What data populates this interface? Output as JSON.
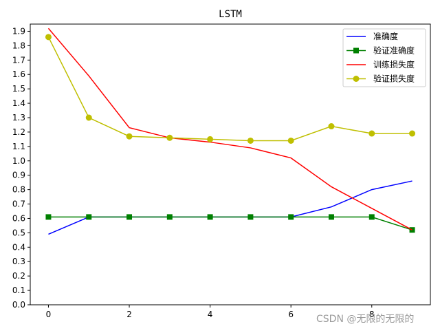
{
  "chart_data": {
    "type": "line",
    "title": "LSTM",
    "xlabel": "",
    "ylabel": "",
    "x": [
      0,
      1,
      2,
      3,
      4,
      5,
      6,
      7,
      8,
      9
    ],
    "xlim": [
      -0.45,
      9.45
    ],
    "ylim": [
      0.0,
      1.95
    ],
    "xticks": [
      0,
      2,
      4,
      6,
      8
    ],
    "yticks": [
      0.0,
      0.1,
      0.2,
      0.3,
      0.4,
      0.5,
      0.6,
      0.7,
      0.8,
      0.9,
      1.0,
      1.1,
      1.2,
      1.3,
      1.4,
      1.5,
      1.6,
      1.7,
      1.8,
      1.9
    ],
    "grid": false,
    "legend_position": "top-right",
    "series": [
      {
        "name": "准确度",
        "color": "#0000ff",
        "marker": "none",
        "values": [
          0.49,
          0.61,
          0.61,
          0.61,
          0.61,
          0.61,
          0.61,
          0.68,
          0.8,
          0.86
        ]
      },
      {
        "name": "验证准确度",
        "color": "#008000",
        "marker": "square",
        "values": [
          0.61,
          0.61,
          0.61,
          0.61,
          0.61,
          0.61,
          0.61,
          0.61,
          0.61,
          0.52
        ]
      },
      {
        "name": "训练损失度",
        "color": "#ff0000",
        "marker": "none",
        "values": [
          1.92,
          1.59,
          1.23,
          1.16,
          1.13,
          1.09,
          1.02,
          0.82,
          0.67,
          0.52
        ]
      },
      {
        "name": "验证损失度",
        "color": "#bfbf00",
        "marker": "circle",
        "values": [
          1.86,
          1.3,
          1.17,
          1.16,
          1.15,
          1.14,
          1.14,
          1.24,
          1.19,
          1.19
        ]
      }
    ]
  },
  "watermark": "CSDN @无限的无限的"
}
